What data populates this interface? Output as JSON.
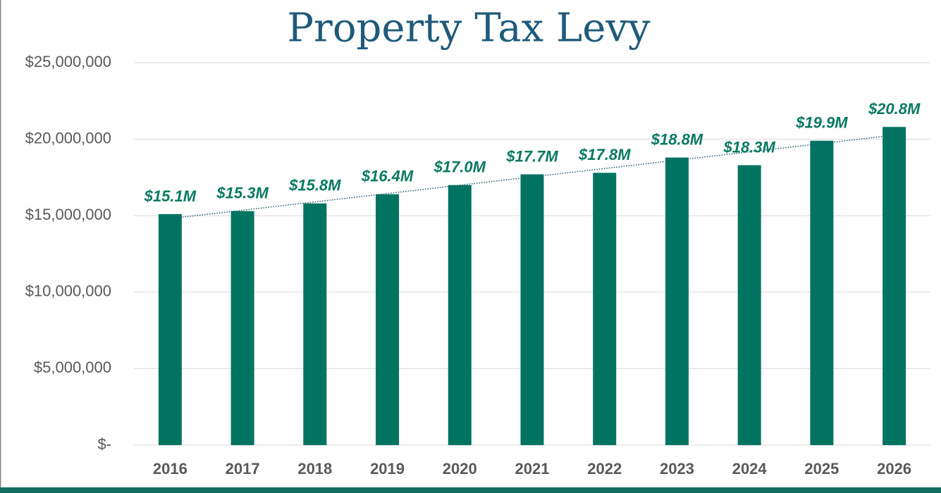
{
  "chart_data": {
    "type": "bar",
    "title": "Property Tax Levy",
    "categories": [
      "2016",
      "2017",
      "2018",
      "2019",
      "2020",
      "2021",
      "2022",
      "2023",
      "2024",
      "2025",
      "2026"
    ],
    "values": [
      15100000,
      15300000,
      15800000,
      16400000,
      17000000,
      17700000,
      17800000,
      18800000,
      18300000,
      19900000,
      20800000
    ],
    "value_labels": [
      "$15.1M",
      "$15.3M",
      "$15.8M",
      "$16.4M",
      "$17.0M",
      "$17.7M",
      "$17.8M",
      "$18.8M",
      "$18.3M",
      "$19.9M",
      "$20.8M"
    ],
    "color": "#007461",
    "ylim": [
      0,
      25000000
    ],
    "yticks": [
      {
        "value": 0,
        "label": "$-"
      },
      {
        "value": 5000000,
        "label": "$5,000,000"
      },
      {
        "value": 10000000,
        "label": "$10,000,000"
      },
      {
        "value": 15000000,
        "label": "$15,000,000"
      },
      {
        "value": 20000000,
        "label": "$20,000,000"
      },
      {
        "value": 25000000,
        "label": "$25,000,000"
      }
    ],
    "grid": true,
    "trendline": "linear"
  }
}
